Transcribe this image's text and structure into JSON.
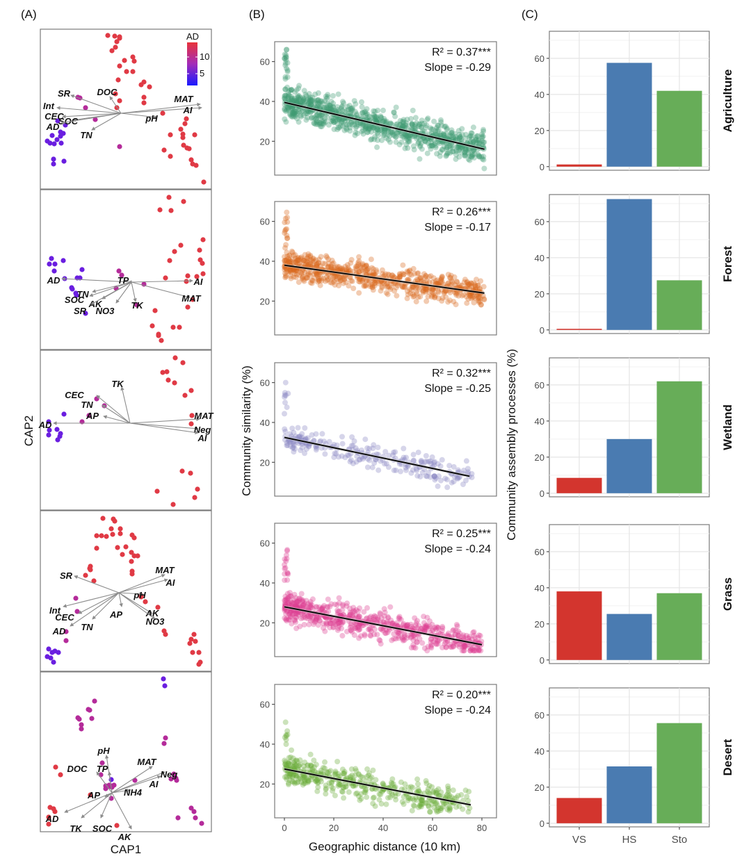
{
  "panel_labels": {
    "A": "(A)",
    "B": "(B)",
    "C": "(C)"
  },
  "habitats": [
    "Agriculture",
    "Forest",
    "Wetland",
    "Grass",
    "Desert"
  ],
  "chart_data": [
    {
      "id": "A",
      "type": "scatter",
      "title": "Constrained analysis of principal coordinates (biplot)",
      "xlabel": "CAP1",
      "ylabel": "CAP2",
      "color_legend": {
        "title": "AD",
        "ticks": [
          "5",
          "10"
        ],
        "range": [
          1,
          13
        ],
        "low_color": "#1a1aff",
        "high_color": "#e8333a"
      },
      "facets": [
        {
          "habitat": "Agriculture",
          "vectors": [
            "SR",
            "DOC",
            "Int",
            "CEC",
            "SOC",
            "AD",
            "TN",
            "MAT",
            "AI",
            "pH"
          ]
        },
        {
          "habitat": "Forest",
          "vectors": [
            "AD",
            "TP",
            "AI",
            "TN",
            "SOC",
            "AK",
            "SR",
            "NO3",
            "TK",
            "MAT"
          ]
        },
        {
          "habitat": "Wetland",
          "vectors": [
            "TK",
            "CEC",
            "TN",
            "AP",
            "AD",
            "MAT",
            "Neg",
            "AI"
          ]
        },
        {
          "habitat": "Grass",
          "vectors": [
            "MAT",
            "AI",
            "SR",
            "pH",
            "Int",
            "AP",
            "AK",
            "CEC",
            "NO3",
            "TN",
            "AD"
          ]
        },
        {
          "habitat": "Desert",
          "vectors": [
            "pH",
            "MAT",
            "Neg",
            "DOC",
            "TP",
            "AI",
            "NH4",
            "AP",
            "AD",
            "TK",
            "SOC",
            "AK"
          ]
        }
      ]
    },
    {
      "id": "B",
      "type": "scatter",
      "xlabel": "Geographic distance (10 km)",
      "ylabel": "Community similarity (%)",
      "xlim": [
        -3,
        83
      ],
      "ylim": [
        3,
        70
      ],
      "xticks": [
        "0",
        "20",
        "40",
        "60",
        "80"
      ],
      "yticks": [
        "20",
        "40",
        "60"
      ],
      "facets": [
        {
          "habitat": "Agriculture",
          "color": "#3f9a73",
          "r2_label": "R² = 0.37***",
          "slope_label": "Slope = -0.29",
          "fit": {
            "x0": 0,
            "y0": 39.5,
            "x1": 81,
            "y1": 16
          }
        },
        {
          "habitat": "Forest",
          "color": "#d9691f",
          "r2_label": "R² = 0.26***",
          "slope_label": "Slope = -0.17",
          "fit": {
            "x0": 0,
            "y0": 38,
            "x1": 81,
            "y1": 24
          }
        },
        {
          "habitat": "Wetland",
          "color": "#8a86c2",
          "r2_label": "R² = 0.32***",
          "slope_label": "Slope = -0.25",
          "fit": {
            "x0": 0,
            "y0": 32.5,
            "x1": 75,
            "y1": 13
          }
        },
        {
          "habitat": "Grass",
          "color": "#de3f92",
          "r2_label": "R² = 0.25***",
          "slope_label": "Slope = -0.24",
          "fit": {
            "x0": 0,
            "y0": 28,
            "x1": 80,
            "y1": 9
          }
        },
        {
          "habitat": "Desert",
          "color": "#6aad3a",
          "r2_label": "R² = 0.20***",
          "slope_label": "Slope = -0.24",
          "fit": {
            "x0": 0,
            "y0": 27.5,
            "x1": 75.5,
            "y1": 9.5
          }
        }
      ]
    },
    {
      "id": "C",
      "type": "bar",
      "ylabel": "Community assembly processes (%)",
      "categories": [
        "VS",
        "HS",
        "Sto"
      ],
      "colors": {
        "VS": "#d3352e",
        "HS": "#4a7bb1",
        "Sto": "#67ad58"
      },
      "ylim": [
        -2,
        75
      ],
      "yticks": [
        "0",
        "20",
        "40",
        "60"
      ],
      "grid": true,
      "series": [
        {
          "name": "Agriculture",
          "values": [
            1.2,
            57.5,
            42
          ]
        },
        {
          "name": "Forest",
          "values": [
            0.6,
            72.5,
            27.5
          ]
        },
        {
          "name": "Wetland",
          "values": [
            8.5,
            30,
            62
          ]
        },
        {
          "name": "Grass",
          "values": [
            38,
            25.5,
            37
          ]
        },
        {
          "name": "Desert",
          "values": [
            14,
            31.5,
            55.5
          ]
        }
      ]
    }
  ]
}
